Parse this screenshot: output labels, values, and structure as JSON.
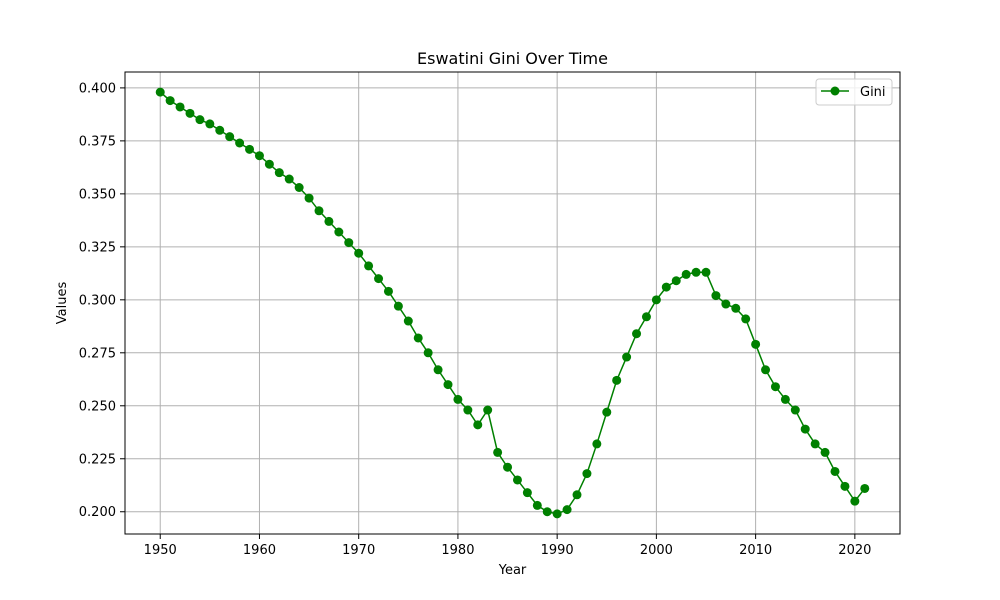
{
  "chart_data": {
    "type": "line",
    "title": "Eswatini Gini Over Time",
    "xlabel": "Year",
    "ylabel": "Values",
    "xlim": [
      1946.45,
      2024.55
    ],
    "ylim": [
      0.1895,
      0.4075
    ],
    "xticks": [
      1950,
      1960,
      1970,
      1980,
      1990,
      2000,
      2010,
      2020
    ],
    "yticks": [
      0.2,
      0.225,
      0.25,
      0.275,
      0.3,
      0.325,
      0.35,
      0.375,
      0.4
    ],
    "grid": true,
    "legend_position": "top-right",
    "color": "#008000",
    "series": [
      {
        "name": "Gini",
        "x": [
          1950,
          1951,
          1952,
          1953,
          1954,
          1955,
          1956,
          1957,
          1958,
          1959,
          1960,
          1961,
          1962,
          1963,
          1964,
          1965,
          1966,
          1967,
          1968,
          1969,
          1970,
          1971,
          1972,
          1973,
          1974,
          1975,
          1976,
          1977,
          1978,
          1979,
          1980,
          1981,
          1982,
          1983,
          1984,
          1985,
          1986,
          1987,
          1988,
          1989,
          1990,
          1991,
          1992,
          1993,
          1994,
          1995,
          1996,
          1997,
          1998,
          1999,
          2000,
          2001,
          2002,
          2003,
          2004,
          2005,
          2006,
          2007,
          2008,
          2009,
          2010,
          2011,
          2012,
          2013,
          2014,
          2015,
          2016,
          2017,
          2018,
          2019,
          2020,
          2021
        ],
        "values": [
          0.398,
          0.394,
          0.391,
          0.388,
          0.385,
          0.383,
          0.38,
          0.377,
          0.374,
          0.371,
          0.368,
          0.364,
          0.36,
          0.357,
          0.353,
          0.348,
          0.342,
          0.337,
          0.332,
          0.327,
          0.322,
          0.316,
          0.31,
          0.304,
          0.297,
          0.29,
          0.282,
          0.275,
          0.267,
          0.26,
          0.253,
          0.248,
          0.241,
          0.248,
          0.228,
          0.221,
          0.215,
          0.209,
          0.203,
          0.2,
          0.199,
          0.201,
          0.208,
          0.218,
          0.232,
          0.247,
          0.262,
          0.273,
          0.284,
          0.292,
          0.3,
          0.306,
          0.309,
          0.312,
          0.313,
          0.313,
          0.302,
          0.298,
          0.296,
          0.291,
          0.279,
          0.267,
          0.259,
          0.253,
          0.248,
          0.239,
          0.232,
          0.228,
          0.219,
          0.212,
          0.205,
          0.211
        ]
      }
    ]
  }
}
